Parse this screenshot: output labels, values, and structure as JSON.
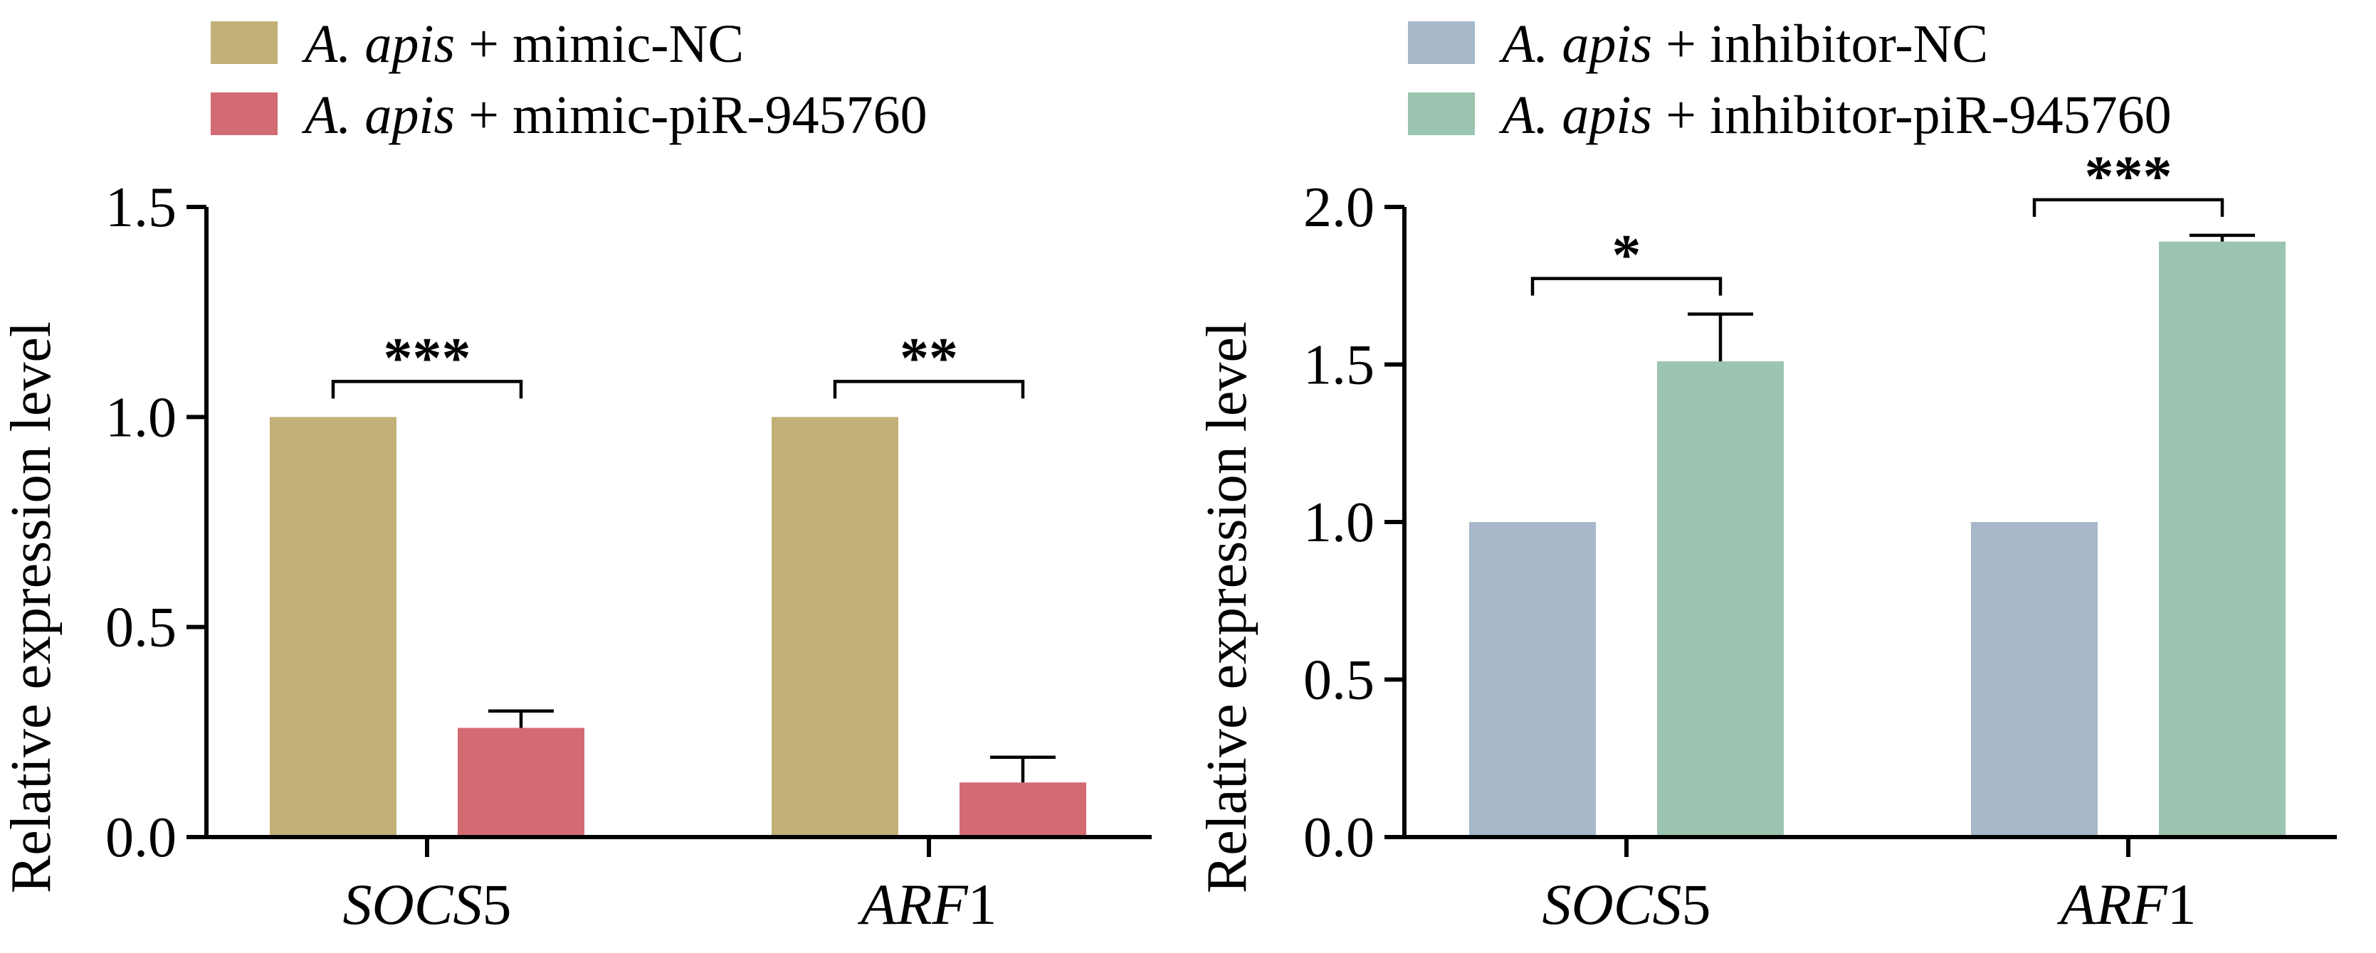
{
  "colors": {
    "mimic_nc": "#c2b078",
    "mimic_pir": "#d36b74",
    "inhibitor_nc": "#a8b8ca",
    "inhibitor_pir": "#9cc5b1",
    "axis": "#000000"
  },
  "chart_data": [
    {
      "type": "bar",
      "ylabel": "Relative expression level",
      "ylim": [
        0,
        1.5
      ],
      "yticks": [
        "0.0",
        "0.5",
        "1.0",
        "1.5"
      ],
      "ytick_values": [
        0,
        0.5,
        1.0,
        1.5
      ],
      "categories": [
        {
          "name": "SOCS",
          "suffix": "5"
        },
        {
          "name": "ARF",
          "suffix": "1"
        }
      ],
      "series": [
        {
          "legend_italic": "A. apis",
          "legend_rest": " + mimic-NC",
          "values": [
            1.0,
            1.0
          ],
          "errors": [
            0,
            0
          ],
          "color_key": "mimic_nc"
        },
        {
          "legend_italic": "A. apis",
          "legend_rest": " + mimic-piR-945760",
          "values": [
            0.26,
            0.13
          ],
          "errors": [
            0.04,
            0.06
          ],
          "color_key": "mimic_pir"
        }
      ],
      "significance": [
        "***",
        "**"
      ]
    },
    {
      "type": "bar",
      "ylabel": "Relative expression level",
      "ylim": [
        0,
        2.0
      ],
      "yticks": [
        "0.0",
        "0.5",
        "1.0",
        "1.5",
        "2.0"
      ],
      "ytick_values": [
        0,
        0.5,
        1.0,
        1.5,
        2.0
      ],
      "categories": [
        {
          "name": "SOCS",
          "suffix": "5"
        },
        {
          "name": "ARF",
          "suffix": "1"
        }
      ],
      "series": [
        {
          "legend_italic": "A. apis",
          "legend_rest": " + inhibitor-NC",
          "values": [
            1.0,
            1.0
          ],
          "errors": [
            0,
            0
          ],
          "color_key": "inhibitor_nc"
        },
        {
          "legend_italic": "A. apis",
          "legend_rest": " + inhibitor-piR-945760",
          "values": [
            1.51,
            1.89
          ],
          "errors": [
            0.15,
            0.02
          ],
          "color_key": "inhibitor_pir"
        }
      ],
      "significance": [
        "*",
        "***"
      ]
    }
  ]
}
